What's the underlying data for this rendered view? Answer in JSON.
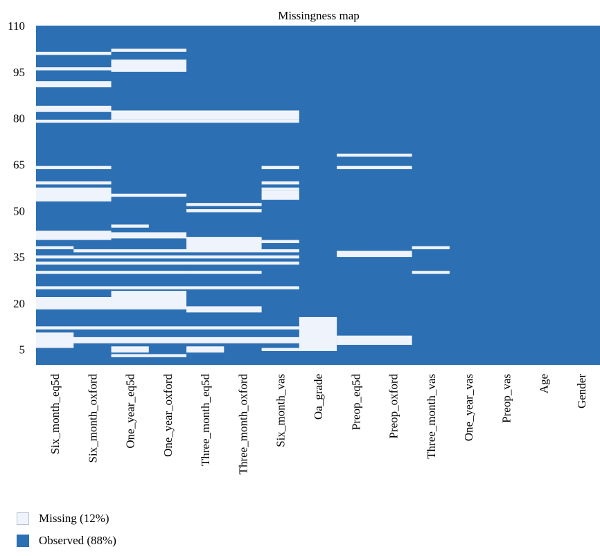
{
  "chart_data": {
    "type": "heatmap",
    "title": "Missingness map",
    "xlabel": "",
    "ylabel": "",
    "ylim": [
      0,
      110
    ],
    "yticks": [
      5,
      20,
      35,
      50,
      65,
      80,
      95,
      110
    ],
    "columns": [
      "Six_month_eq5d",
      "Six_month_oxford",
      "One_year_eq5d",
      "One_year_oxford",
      "Three_month_eq5d",
      "Three_month_oxford",
      "Six_month_vas",
      "Oa_grade",
      "Preop_eq5d",
      "Preop_oxford",
      "Three_month_vas",
      "One_year_vas",
      "Preop_vas",
      "Age",
      "Gender"
    ],
    "colors": {
      "missing": "#eff3fb",
      "observed": "#2c70b3"
    },
    "legend": [
      {
        "label": "Missing (12%)",
        "key": "missing"
      },
      {
        "label": "Observed (88%)",
        "key": "observed"
      }
    ],
    "missing": [
      {
        "col_start": 0,
        "col_end": 1,
        "y": 101
      },
      {
        "col_start": 0,
        "col_end": 1,
        "y": 96
      },
      {
        "col_start": 0,
        "col_end": 1,
        "y": 91,
        "height": 2
      },
      {
        "col_start": 0,
        "col_end": 1,
        "y": 83,
        "height": 2
      },
      {
        "col_start": 0,
        "col_end": 6,
        "y": 79
      },
      {
        "col_start": 0,
        "col_end": 1,
        "y": 64
      },
      {
        "col_start": 0,
        "col_end": 1,
        "y": 59
      },
      {
        "col_start": 0,
        "col_end": 1,
        "y": 57
      },
      {
        "col_start": 0,
        "col_end": 1,
        "y": 55,
        "height": 4
      },
      {
        "col_start": 0,
        "col_end": 1,
        "y": 42,
        "height": 3
      },
      {
        "col_start": 0,
        "col_end": 0,
        "y": 38
      },
      {
        "col_start": 0,
        "col_end": 6,
        "y": 35
      },
      {
        "col_start": 0,
        "col_end": 6,
        "y": 33
      },
      {
        "col_start": 0,
        "col_end": 3,
        "y": 30
      },
      {
        "col_start": 0,
        "col_end": 6,
        "y": 25
      },
      {
        "col_start": 0,
        "col_end": 1,
        "y": 20,
        "height": 4
      },
      {
        "col_start": 0,
        "col_end": 6,
        "y": 12
      },
      {
        "col_start": 0,
        "col_end": 0,
        "y": 8,
        "height": 5
      },
      {
        "col_start": 0,
        "col_end": 6,
        "y": 8,
        "height": 2
      },
      {
        "col_start": 1,
        "col_end": 6,
        "y": 37
      },
      {
        "col_start": 2,
        "col_end": 3,
        "y": 102
      },
      {
        "col_start": 2,
        "col_end": 3,
        "y": 97,
        "height": 4
      },
      {
        "col_start": 2,
        "col_end": 5,
        "y": 82
      },
      {
        "col_start": 2,
        "col_end": 3,
        "y": 55
      },
      {
        "col_start": 2,
        "col_end": 2,
        "y": 45
      },
      {
        "col_start": 2,
        "col_end": 3,
        "y": 42,
        "height": 2
      },
      {
        "col_start": 2,
        "col_end": 3,
        "y": 21,
        "height": 6
      },
      {
        "col_start": 2,
        "col_end": 2,
        "y": 5,
        "height": 2
      },
      {
        "col_start": 2,
        "col_end": 3,
        "y": 3
      },
      {
        "col_start": 2,
        "col_end": 6,
        "y": 81,
        "height": 3
      },
      {
        "col_start": 4,
        "col_end": 5,
        "y": 52
      },
      {
        "col_start": 4,
        "col_end": 5,
        "y": 50
      },
      {
        "col_start": 4,
        "col_end": 5,
        "y": 41
      },
      {
        "col_start": 4,
        "col_end": 5,
        "y": 39,
        "height": 4
      },
      {
        "col_start": 4,
        "col_end": 5,
        "y": 30
      },
      {
        "col_start": 4,
        "col_end": 5,
        "y": 18,
        "height": 2
      },
      {
        "col_start": 4,
        "col_end": 4,
        "y": 5,
        "height": 2
      },
      {
        "col_start": 6,
        "col_end": 6,
        "y": 64
      },
      {
        "col_start": 6,
        "col_end": 6,
        "y": 59
      },
      {
        "col_start": 6,
        "col_end": 6,
        "y": 57
      },
      {
        "col_start": 6,
        "col_end": 6,
        "y": 55,
        "height": 3
      },
      {
        "col_start": 6,
        "col_end": 6,
        "y": 40
      },
      {
        "col_start": 6,
        "col_end": 6,
        "y": 5
      },
      {
        "col_start": 7,
        "col_end": 7,
        "y": 10,
        "height": 11
      },
      {
        "col_start": 8,
        "col_end": 9,
        "y": 68
      },
      {
        "col_start": 8,
        "col_end": 9,
        "y": 64
      },
      {
        "col_start": 8,
        "col_end": 9,
        "y": 36,
        "height": 2
      },
      {
        "col_start": 8,
        "col_end": 9,
        "y": 8,
        "height": 3
      },
      {
        "col_start": 10,
        "col_end": 10,
        "y": 38
      },
      {
        "col_start": 10,
        "col_end": 10,
        "y": 30
      }
    ]
  }
}
